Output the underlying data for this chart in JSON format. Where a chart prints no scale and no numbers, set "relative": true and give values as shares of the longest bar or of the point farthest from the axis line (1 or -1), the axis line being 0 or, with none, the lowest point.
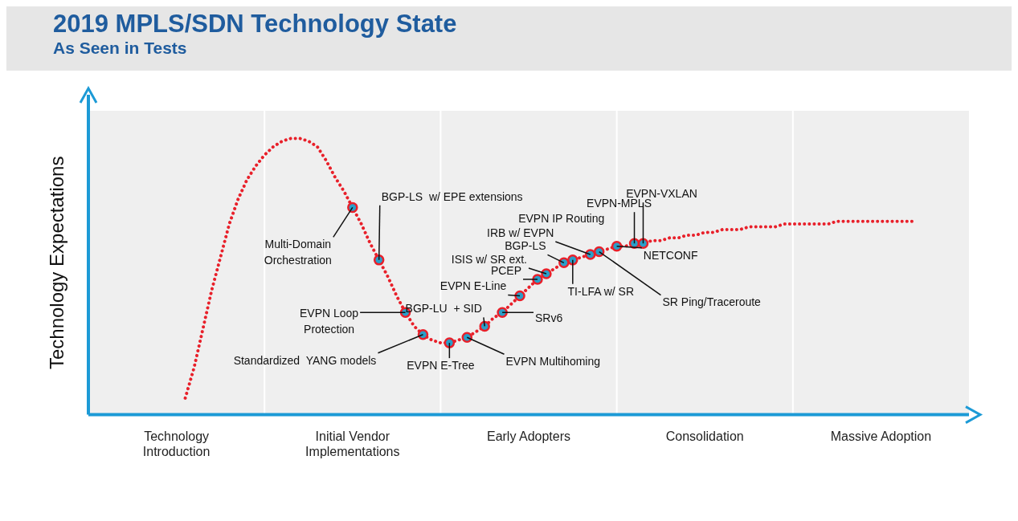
{
  "chart_data": {
    "type": "line",
    "title": "2019 MPLS/SDN Technology State",
    "subtitle": "As Seen in Tests",
    "ylabel": "Technology Expectations",
    "relative": true,
    "legend": false,
    "categories": [
      null,
      null,
      null,
      null,
      null,
      null,
      null,
      null,
      null,
      null,
      "Technology\nIntroduction",
      null,
      null,
      null,
      null,
      null,
      null,
      null,
      null,
      null,
      null,
      null,
      null,
      null,
      null,
      null,
      null,
      null,
      null,
      null,
      "Initial Vendor\nImplementations",
      null,
      null,
      null,
      null,
      null,
      null,
      null,
      null,
      null,
      null,
      null,
      null,
      null,
      null,
      null,
      null,
      null,
      null,
      null,
      "Early Adopters",
      null,
      null,
      null,
      null,
      null,
      null,
      null,
      null,
      null,
      null,
      null,
      null,
      null,
      null,
      null,
      null,
      null,
      null,
      null,
      "Consolidation",
      null,
      null,
      null,
      null,
      null,
      null,
      null,
      null,
      null,
      null,
      null,
      null,
      null,
      null,
      null,
      null,
      null,
      null,
      null,
      "Massive Adoption",
      null,
      null,
      null,
      null,
      null,
      null,
      null,
      null,
      null,
      null
    ],
    "series": [
      {
        "color": "#e8202a",
        "line_style": "dotted",
        "marker": "none",
        "values": [
          null,
          null,
          null,
          null,
          null,
          null,
          null,
          null,
          null,
          null,
          null,
          0.06,
          0.17,
          0.31,
          0.45,
          0.57,
          0.69,
          0.78,
          0.85,
          0.9,
          0.94,
          0.97,
          0.99,
          1.0,
          1.0,
          0.99,
          0.97,
          0.92,
          0.86,
          0.81,
          0.75,
          0.69,
          0.62,
          0.56,
          0.5,
          0.43,
          0.37,
          0.32,
          0.29,
          0.27,
          0.26,
          0.26,
          0.27,
          0.28,
          0.3,
          0.32,
          0.35,
          0.37,
          0.4,
          0.43,
          0.46,
          0.49,
          0.51,
          0.53,
          0.55,
          0.56,
          0.57,
          0.58,
          0.59,
          0.6,
          0.61,
          0.61,
          0.62,
          0.62,
          0.63,
          0.63,
          0.64,
          0.64,
          0.65,
          0.65,
          0.66,
          0.66,
          0.67,
          0.67,
          0.67,
          0.68,
          0.68,
          0.68,
          0.68,
          0.69,
          0.69,
          0.69,
          0.69,
          0.69,
          0.69,
          0.7,
          0.7,
          0.7,
          0.7,
          0.7,
          0.7,
          0.7,
          0.7,
          0.7,
          0.7,
          null,
          null,
          null,
          null,
          null,
          null
        ]
      },
      {
        "type": "scatter",
        "color": "#2a9fc9",
        "marker": "circle",
        "values": [
          null,
          null,
          null,
          null,
          null,
          null,
          null,
          null,
          null,
          null,
          null,
          null,
          null,
          null,
          null,
          null,
          null,
          null,
          null,
          null,
          null,
          null,
          null,
          null,
          null,
          null,
          null,
          null,
          null,
          null,
          0.75,
          null,
          null,
          0.56,
          null,
          null,
          0.37,
          null,
          0.29,
          null,
          null,
          0.26,
          null,
          0.28,
          null,
          0.32,
          null,
          0.37,
          null,
          0.43,
          null,
          0.49,
          0.51,
          null,
          0.55,
          0.56,
          null,
          0.58,
          0.59,
          null,
          0.61,
          null,
          0.62,
          0.62,
          null,
          null,
          null,
          null,
          null,
          null,
          null,
          null,
          null,
          null,
          null,
          null,
          null,
          null,
          null,
          null,
          null,
          null,
          null,
          null,
          null,
          null,
          null,
          null,
          null,
          null,
          null,
          null,
          null,
          null,
          null,
          null,
          null,
          null,
          null,
          null,
          null
        ]
      }
    ],
    "annotations": [
      "Multi-Domain\nOrchestration",
      "BGP-LS  w/ EPE extensions",
      "EVPN Loop\nProtection",
      "Standardized  YANG models",
      "EVPN E-Tree",
      "EVPN Multihoming",
      "BGP-LU  + SID",
      "SRv6",
      "EVPN E-Line",
      "PCEP",
      "ISIS w/ SR ext.",
      "BGP-LS",
      "TI-LFA w/ SR",
      "IRB w/ EVPN",
      "EVPN IP Routing",
      "SR Ping/Traceroute",
      "NETCONF",
      "EVPN-MPLS",
      "EVPN-VXLAN"
    ]
  }
}
